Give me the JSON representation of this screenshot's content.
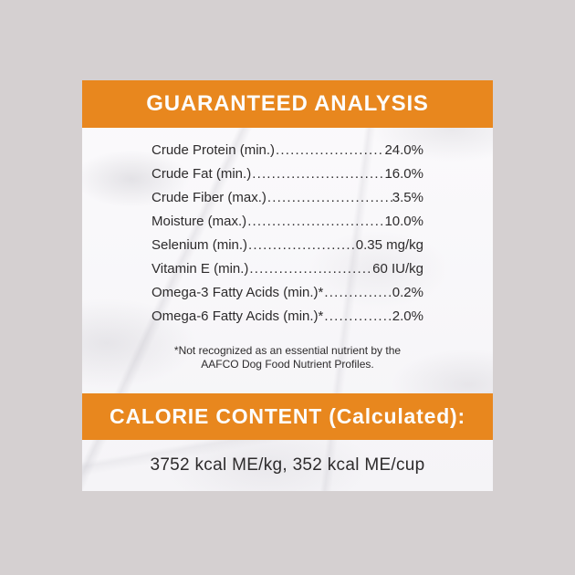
{
  "header": {
    "title": "GUARANTEED ANALYSIS"
  },
  "analysis": {
    "rows": [
      {
        "label": "Crude Protein (min.)",
        "value": "24.0%"
      },
      {
        "label": "Crude Fat (min.)",
        "value": "16.0%"
      },
      {
        "label": "Crude Fiber (max.)",
        "value": "3.5%"
      },
      {
        "label": "Moisture (max.)",
        "value": "10.0%"
      },
      {
        "label": "Selenium (min.)",
        "value": "0.35 mg/kg"
      },
      {
        "label": "Vitamin E (min.)",
        "value": "60 IU/kg"
      },
      {
        "label": "Omega-3 Fatty Acids (min.)*",
        "value": "0.2%"
      },
      {
        "label": "Omega-6 Fatty Acids (min.)*",
        "value": "2.0%"
      }
    ],
    "footnote_line1": "*Not recognized as an essential nutrient by the",
    "footnote_line2": "AAFCO Dog Food Nutrient Profiles."
  },
  "calories": {
    "title": "CALORIE CONTENT (Calculated):",
    "value": "3752 kcal ME/kg, 352 kcal ME/cup"
  },
  "colors": {
    "accent_orange": "#e8871e",
    "outer_background": "#d5d0d1",
    "label_background": "#f8f7f9",
    "text": "#2d2b2c",
    "bar_text": "#fdfdfc"
  }
}
